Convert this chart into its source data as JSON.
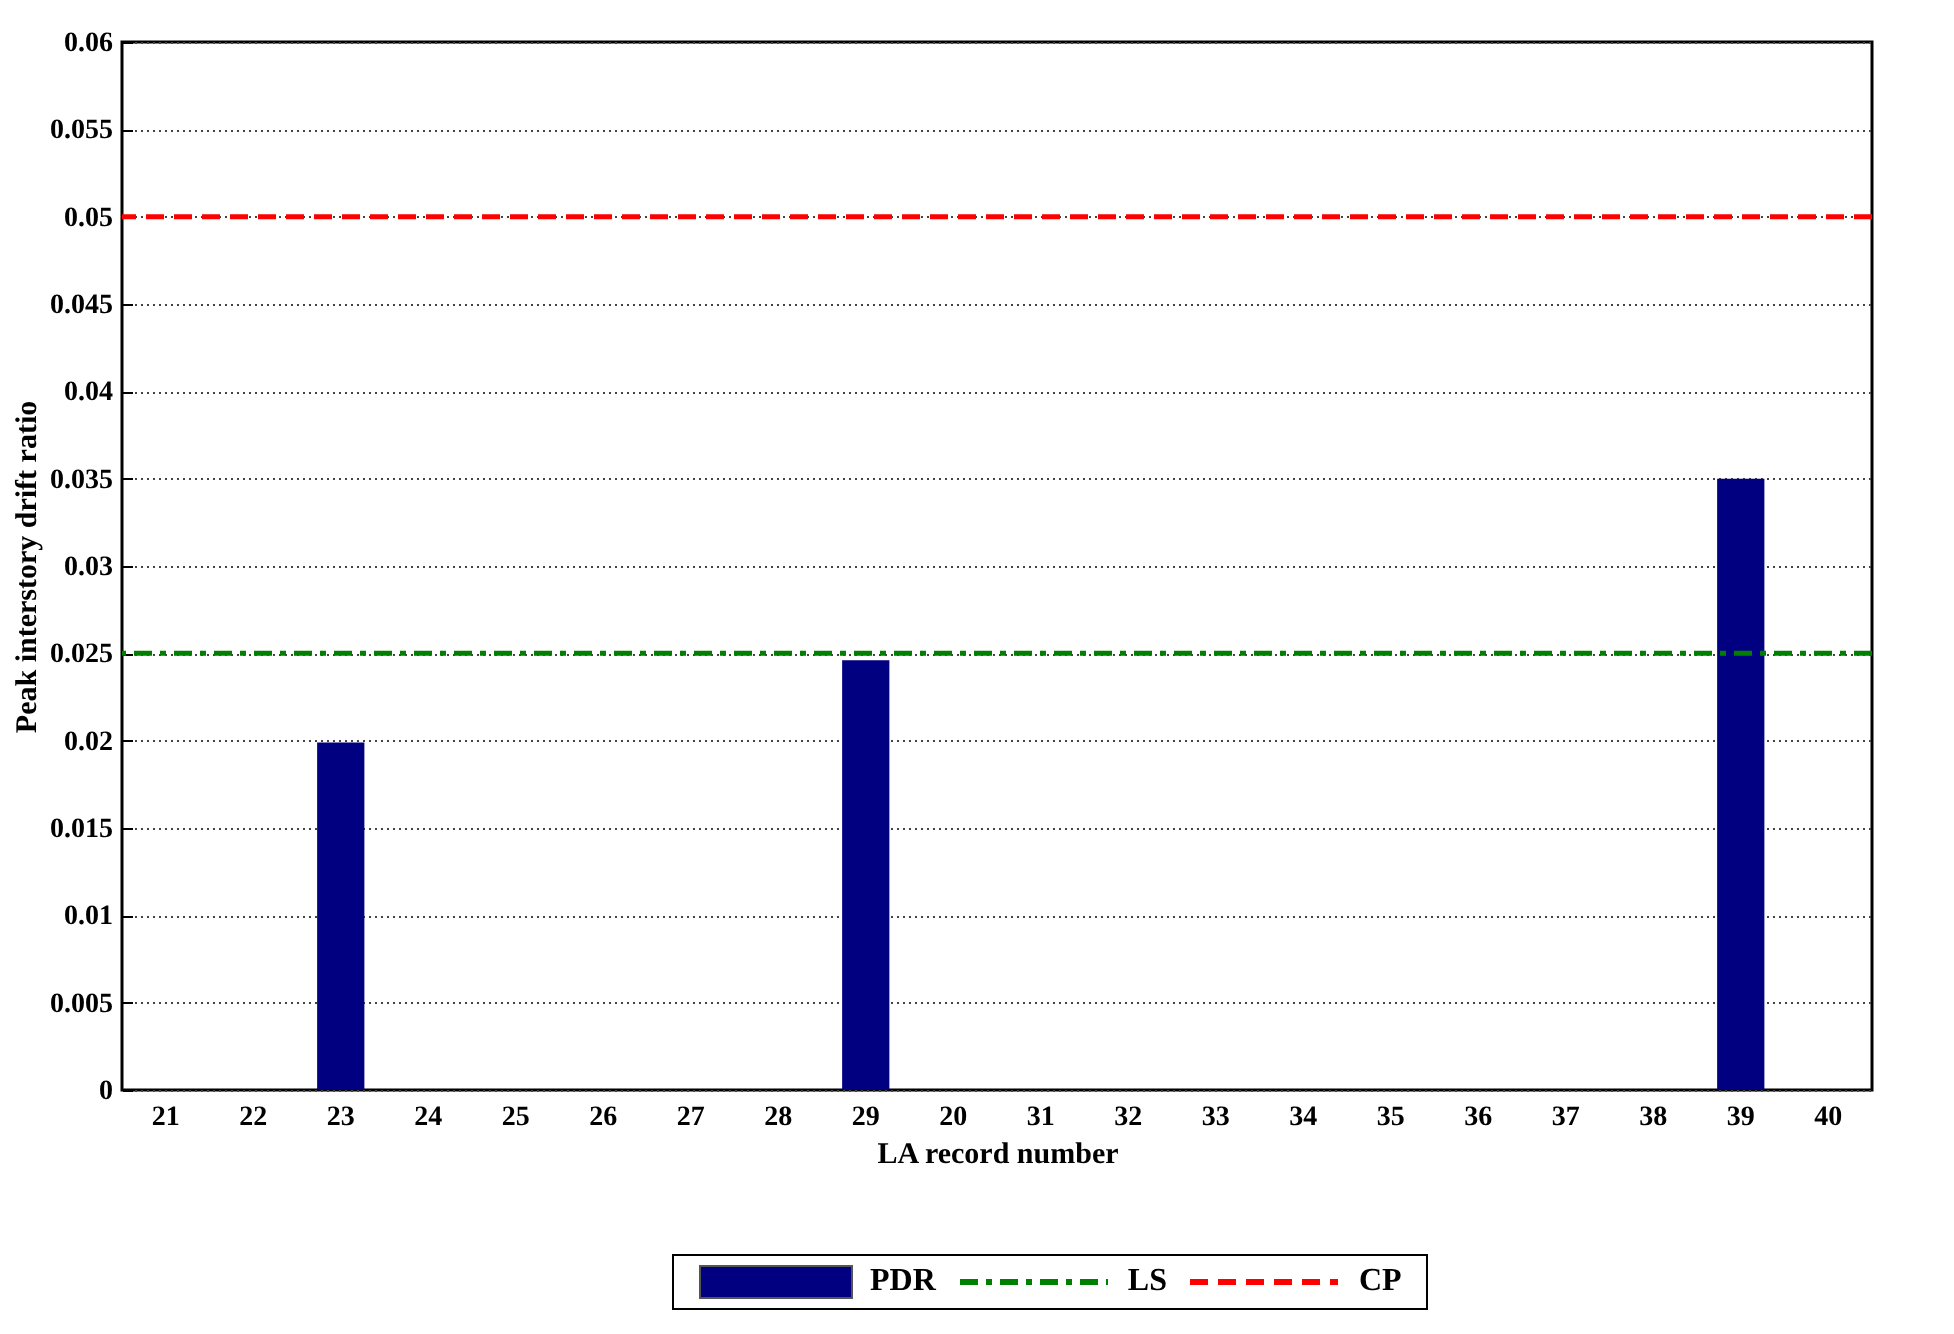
{
  "chart_data": {
    "type": "bar",
    "xlabel": "LA record number",
    "ylabel": "Peak interstory drift ratio",
    "categories": [
      "21",
      "22",
      "23",
      "24",
      "25",
      "26",
      "27",
      "28",
      "29",
      "20",
      "31",
      "32",
      "33",
      "34",
      "35",
      "36",
      "37",
      "38",
      "39",
      "40"
    ],
    "series": [
      {
        "name": "PDR",
        "color": "#000080",
        "values": [
          0,
          0,
          0.0199,
          0,
          0,
          0,
          0,
          0,
          0.0246,
          0,
          0,
          0,
          0,
          0,
          0,
          0,
          0,
          0,
          0.035,
          0
        ]
      }
    ],
    "ylim": [
      0,
      0.06
    ],
    "yticks": [
      0,
      0.005,
      0.01,
      0.015,
      0.02,
      0.025,
      0.03,
      0.035,
      0.04,
      0.045,
      0.05,
      0.055,
      0.06
    ],
    "ref_lines": [
      {
        "axis": "y",
        "value": 0.025,
        "label": "LS",
        "color": "#008000",
        "line_style": "dashdot"
      },
      {
        "axis": "y",
        "value": 0.05,
        "label": "CP",
        "color": "#ff0000",
        "line_style": "dashed"
      }
    ],
    "grid": "y",
    "legend": "bottom"
  }
}
